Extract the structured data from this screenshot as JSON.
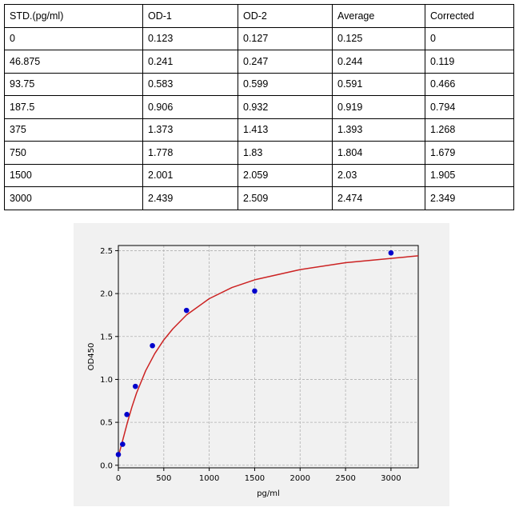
{
  "table": {
    "headers": [
      "STD.(pg/ml)",
      "OD-1",
      "OD-2",
      "Average",
      "Corrected"
    ],
    "rows": [
      [
        "0",
        "0.123",
        "0.127",
        "0.125",
        "0"
      ],
      [
        "46.875",
        "0.241",
        "0.247",
        "0.244",
        "0.119"
      ],
      [
        "93.75",
        "0.583",
        "0.599",
        "0.591",
        "0.466"
      ],
      [
        "187.5",
        "0.906",
        "0.932",
        "0.919",
        "0.794"
      ],
      [
        "375",
        "1.373",
        "1.413",
        "1.393",
        "1.268"
      ],
      [
        "750",
        "1.778",
        "1.83",
        "1.804",
        "1.679"
      ],
      [
        "1500",
        "2.001",
        "2.059",
        "2.03",
        "1.905"
      ],
      [
        "3000",
        "2.439",
        "2.509",
        "2.474",
        "2.349"
      ]
    ]
  },
  "chart_data": {
    "type": "scatter",
    "title": "",
    "xlabel": "pg/ml",
    "ylabel": "OD450",
    "xlim": [
      0,
      3300
    ],
    "ylim": [
      -0.03,
      2.56
    ],
    "xticks": [
      0,
      500,
      1000,
      1500,
      2000,
      2500,
      3000
    ],
    "yticks": [
      0.0,
      0.5,
      1.0,
      1.5,
      2.0,
      2.5
    ],
    "ytick_labels": [
      "0.0",
      "0.5",
      "1.0",
      "1.5",
      "2.0",
      "2.5"
    ],
    "grid": true,
    "series": [
      {
        "kind": "points",
        "color": "#0000cc",
        "x": [
          0,
          46.875,
          93.75,
          187.5,
          375,
          750,
          1500,
          3000
        ],
        "y": [
          0.125,
          0.244,
          0.591,
          0.919,
          1.393,
          1.804,
          2.03,
          2.474
        ]
      },
      {
        "kind": "fitted-curve",
        "color": "#cc2222",
        "x": [
          0,
          25,
          50,
          100,
          150,
          200,
          300,
          400,
          500,
          600,
          750,
          1000,
          1250,
          1500,
          2000,
          2500,
          3000,
          3300
        ],
        "y": [
          0.1,
          0.2,
          0.3,
          0.5,
          0.68,
          0.84,
          1.1,
          1.3,
          1.46,
          1.59,
          1.75,
          1.94,
          2.07,
          2.16,
          2.28,
          2.36,
          2.41,
          2.44
        ]
      }
    ]
  }
}
